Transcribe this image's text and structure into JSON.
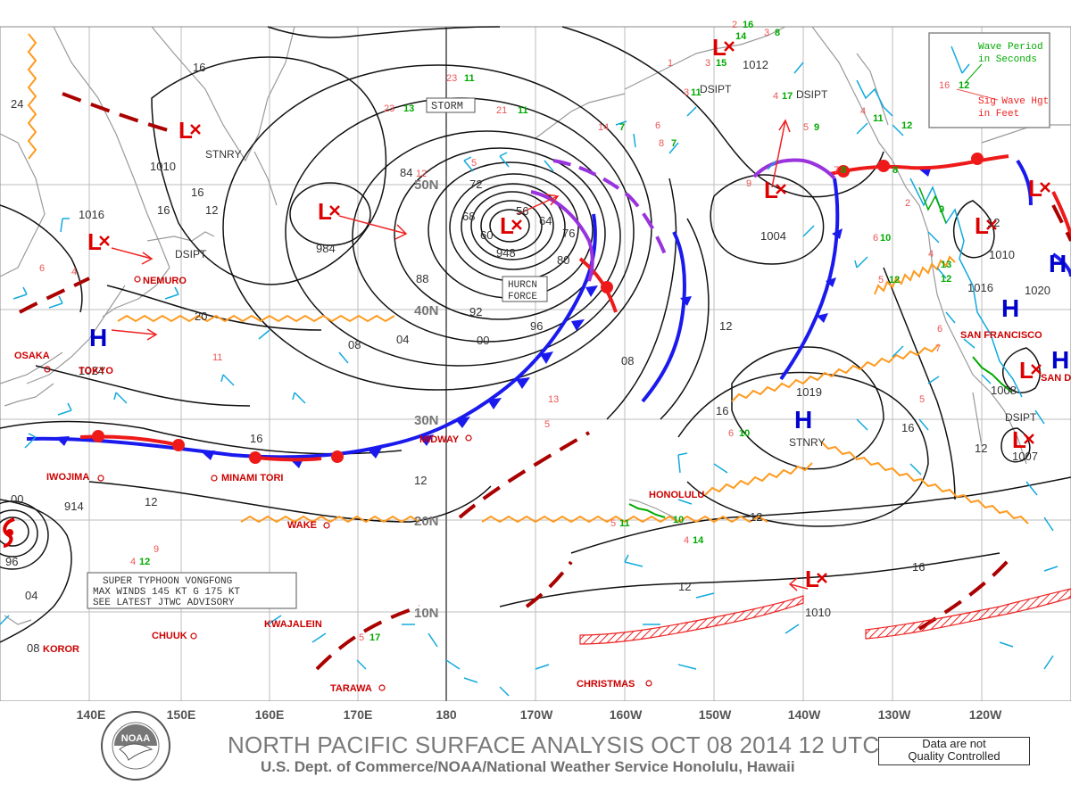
{
  "header": {
    "title": "NORTH PACIFIC SURFACE ANALYSIS OCT 08 2014 12 UTC",
    "subtitle": "U.S. Dept. of Commerce/NOAA/National Weather Service Honolulu, Hawaii",
    "quality_line1": "Data are not",
    "quality_line2": "Quality Controlled"
  },
  "logo": {
    "text": "NOAA"
  },
  "legend": {
    "period_line1": "Wave Period",
    "period_line2": "in Seconds",
    "hgt_line1": "Sig Wave Hgt",
    "hgt_line2": "in Feet",
    "sample_period": "12",
    "sample_height": "16"
  },
  "longitudes": [
    "140E",
    "150E",
    "160E",
    "170E",
    "180",
    "170W",
    "160W",
    "150W",
    "140W",
    "130W",
    "120W"
  ],
  "latitudes": [
    "50N",
    "40N",
    "30N",
    "20N",
    "10N"
  ],
  "isobar_labels": [
    "24",
    "1010",
    "1016",
    "16",
    "12",
    "984",
    "88",
    "92",
    "96",
    "00",
    "04",
    "08",
    "20",
    "1024",
    "16",
    "12",
    "00",
    "914",
    "96",
    "04",
    "08",
    "72",
    "68",
    "60",
    "56",
    "64",
    "76",
    "80",
    "948",
    "84",
    "12",
    "1012",
    "1004",
    "12",
    "1019",
    "16",
    "16",
    "12",
    "1010",
    "1016",
    "1020",
    "1008",
    "1007",
    "12",
    "16"
  ],
  "station_names": [
    "NEMURO",
    "OSAKA",
    "TOKYO",
    "IWOJIMA",
    "MINAMI TORI",
    "WAKE",
    "MIDWAY",
    "HONOLULU",
    "KWAJALEIN",
    "CHUUK",
    "TARAWA",
    "CHRISTMAS",
    "SAN FRANCISCO",
    "KOROR",
    "SAN DIEGO"
  ],
  "boxed_labels": {
    "storm": "STORM",
    "hurcn_line1": "HURCN",
    "hurcn_line2": "FORCE",
    "typhoon_line1": "SUPER TYPHOON VONGFONG",
    "typhoon_line2": "MAX WINDS 145 KT G 175 KT",
    "typhoon_line3": "SEE LATEST JTWC ADVISORY"
  },
  "system_labels": [
    "STNRY",
    "DSIPT",
    "DSIPT",
    "DSIPT",
    "STNRY",
    "DSIPT"
  ],
  "pressure_centers": [
    {
      "type": "L",
      "label": "L"
    },
    {
      "type": "L",
      "label": "L"
    },
    {
      "type": "L",
      "label": "L"
    },
    {
      "type": "L",
      "label": "L"
    },
    {
      "type": "L",
      "label": "L"
    },
    {
      "type": "L",
      "label": "L"
    },
    {
      "type": "L",
      "label": "L"
    },
    {
      "type": "L",
      "label": "L"
    },
    {
      "type": "L",
      "label": "L"
    },
    {
      "type": "L",
      "label": "L"
    },
    {
      "type": "L",
      "label": "L"
    },
    {
      "type": "H",
      "label": "H"
    },
    {
      "type": "H",
      "label": "H"
    },
    {
      "type": "H",
      "label": "H"
    },
    {
      "type": "H",
      "label": "H"
    },
    {
      "type": "H",
      "label": "H"
    }
  ],
  "wave_heights": [
    "2",
    "3",
    "1",
    "3",
    "3",
    "4",
    "5",
    "6",
    "8",
    "23",
    "23",
    "21",
    "14",
    "12",
    "5",
    "6",
    "4",
    "9",
    "11",
    "13",
    "5",
    "6",
    "5",
    "4",
    "7",
    "4",
    "9",
    "4",
    "6",
    "5",
    "2",
    "4",
    "5",
    "6",
    "7",
    "5"
  ],
  "wave_periods": [
    "16",
    "14",
    "8",
    "15",
    "11",
    "17",
    "7",
    "11",
    "13",
    "11",
    "9",
    "7",
    "10",
    "12",
    "10",
    "11",
    "14",
    "10",
    "8",
    "12",
    "11",
    "12",
    "17",
    "9",
    "13",
    "12",
    "8"
  ],
  "colors": {
    "isobar": "#111111",
    "coast": "#9a9a9a",
    "grid": "#aaaaaa",
    "cold_front": "#1a1aee",
    "warm_front": "#ee1a1a",
    "occluded": "#9933dd",
    "trough": "#aa0000",
    "ridge": "#ff9a1f",
    "low": "#dd0000",
    "high": "#0000cc",
    "wind": "#11aadd",
    "wave_period": "#00aa00",
    "wave_height": "#ee5555"
  }
}
